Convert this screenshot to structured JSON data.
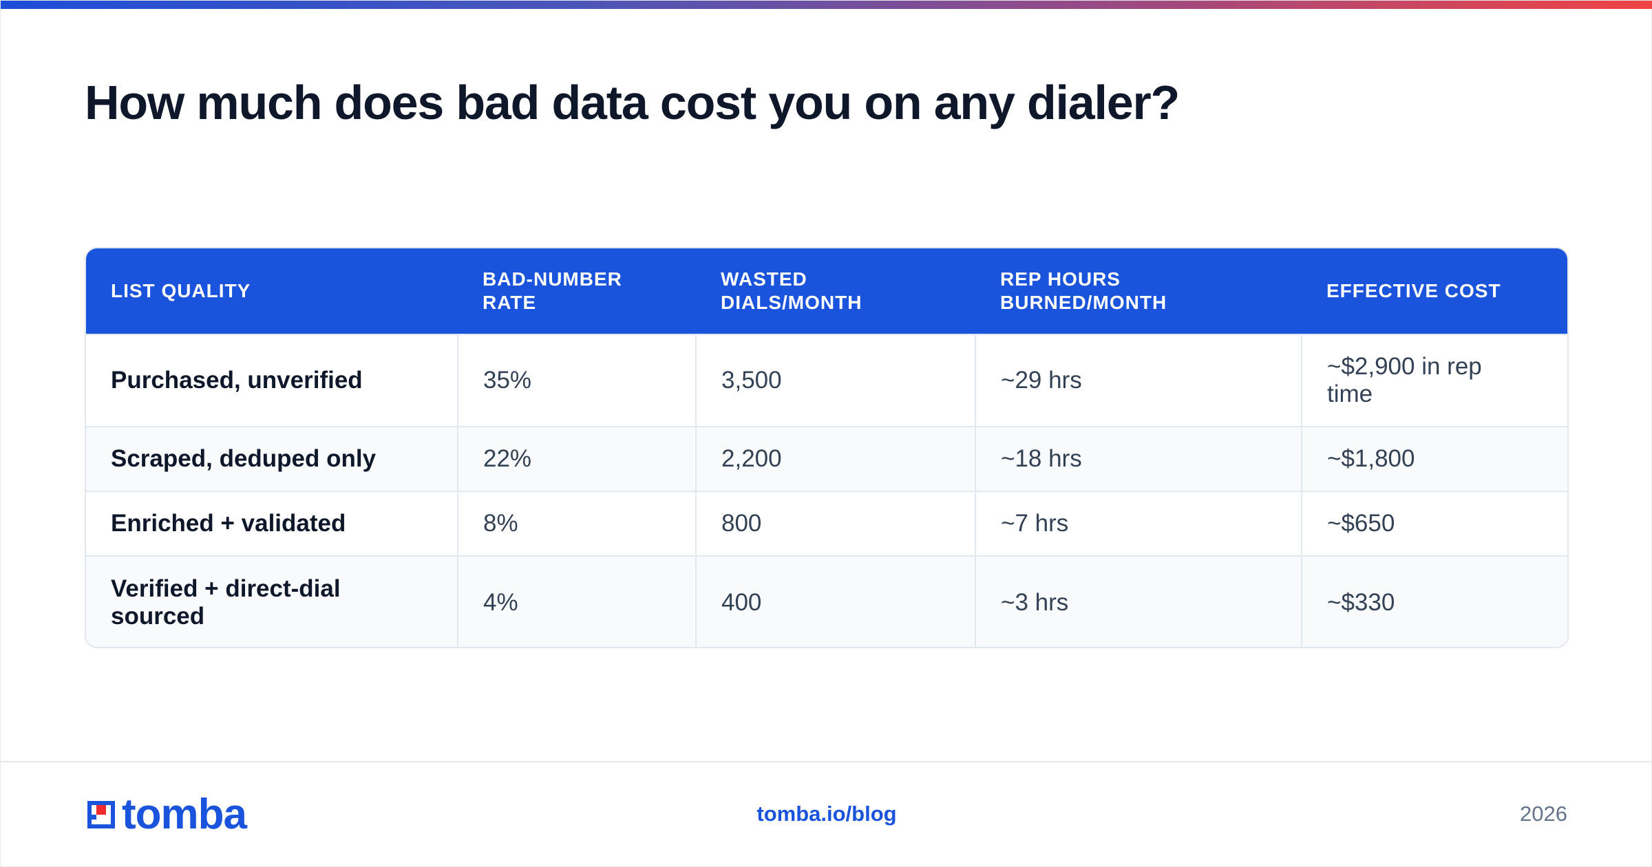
{
  "title": "How much does bad data cost you on any dialer?",
  "table": {
    "headers": [
      "LIST QUALITY",
      "BAD-NUMBER RATE",
      "WASTED DIALS/MONTH",
      "REP HOURS BURNED/MONTH",
      "EFFECTIVE COST"
    ],
    "rows": [
      [
        "Purchased, unverified",
        "35%",
        "3,500",
        "~29 hrs",
        "~$2,900 in rep time"
      ],
      [
        "Scraped, deduped only",
        "22%",
        "2,200",
        "~18 hrs",
        "~$1,800"
      ],
      [
        "Enriched + validated",
        "8%",
        "800",
        "~7 hrs",
        "~$650"
      ],
      [
        "Verified + direct-dial sourced",
        "4%",
        "400",
        "~3 hrs",
        "~$330"
      ]
    ]
  },
  "footer": {
    "brand": "tomba",
    "link": "tomba.io/blog",
    "year": "2026"
  },
  "colors": {
    "accent": "#1b54dc",
    "logo_red": "#ef2b2d",
    "gradient_start": "#1d4ed8",
    "gradient_end": "#ef4444"
  },
  "icons": {
    "logo_mark": "tomba-logo-icon"
  }
}
